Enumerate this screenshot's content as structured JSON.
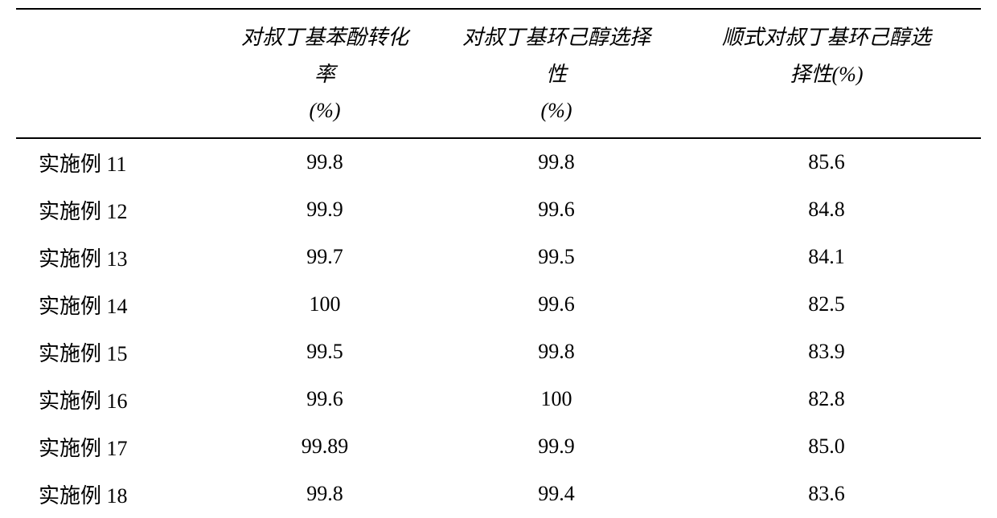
{
  "table": {
    "type": "table",
    "background_color": "#ffffff",
    "border_color": "#000000",
    "header_font": "KaiTi",
    "header_fontsize": 26,
    "body_font": "SimSun",
    "body_fontsize": 26,
    "columns": [
      {
        "key": "label",
        "header": "",
        "align": "left",
        "width_pct": 20
      },
      {
        "key": "conv",
        "header": "对叔丁基苯酚转化率\n(%)",
        "align": "center",
        "width_pct": 24
      },
      {
        "key": "sel",
        "header": "对叔丁基环己醇选择性\n(%)",
        "align": "center",
        "width_pct": 24
      },
      {
        "key": "cis",
        "header": "顺式对叔丁基环己醇选择性(%)",
        "align": "center",
        "width_pct": 32
      }
    ],
    "header_lines": {
      "conv": [
        "对叔丁基苯酚转化",
        "率",
        "(%)"
      ],
      "sel": [
        "对叔丁基环己醇选择",
        "性",
        "(%)"
      ],
      "cis": [
        "顺式对叔丁基环己醇选",
        "择性(%)"
      ]
    },
    "rows": [
      {
        "label": "实施例 11",
        "conv": "99.8",
        "sel": "99.8",
        "cis": "85.6"
      },
      {
        "label": "实施例 12",
        "conv": "99.9",
        "sel": "99.6",
        "cis": "84.8"
      },
      {
        "label": "实施例 13",
        "conv": "99.7",
        "sel": "99.5",
        "cis": "84.1"
      },
      {
        "label": "实施例 14",
        "conv": "100",
        "sel": "99.6",
        "cis": "82.5"
      },
      {
        "label": "实施例 15",
        "conv": "99.5",
        "sel": "99.8",
        "cis": "83.9"
      },
      {
        "label": "实施例 16",
        "conv": "99.6",
        "sel": "100",
        "cis": "82.8"
      },
      {
        "label": "实施例 17",
        "conv": "99.89",
        "sel": "99.9",
        "cis": "85.0"
      },
      {
        "label": "实施例 18",
        "conv": "99.8",
        "sel": "99.4",
        "cis": "83.6"
      }
    ]
  }
}
